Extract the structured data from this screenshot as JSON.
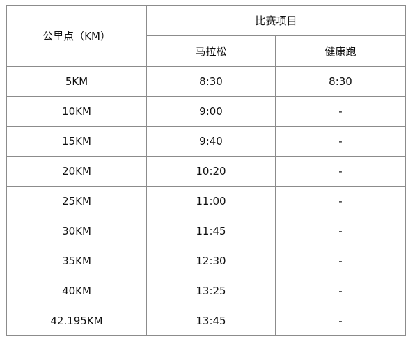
{
  "header": {
    "km_point_label": "公里点（KM）",
    "event_group_label": "比赛项目",
    "marathon_label": "马拉松",
    "health_run_label": "健康跑"
  },
  "rows": [
    {
      "km": "5KM",
      "marathon": "8:30",
      "health_run": "8:30"
    },
    {
      "km": "10KM",
      "marathon": "9:00",
      "health_run": "-"
    },
    {
      "km": "15KM",
      "marathon": "9:40",
      "health_run": "-"
    },
    {
      "km": "20KM",
      "marathon": "10:20",
      "health_run": "-"
    },
    {
      "km": "25KM",
      "marathon": "11:00",
      "health_run": "-"
    },
    {
      "km": "30KM",
      "marathon": "11:45",
      "health_run": "-"
    },
    {
      "km": "35KM",
      "marathon": "12:30",
      "health_run": "-"
    },
    {
      "km": "40KM",
      "marathon": "13:25",
      "health_run": "-"
    },
    {
      "km": "42.195KM",
      "marathon": "13:45",
      "health_run": "-"
    }
  ]
}
